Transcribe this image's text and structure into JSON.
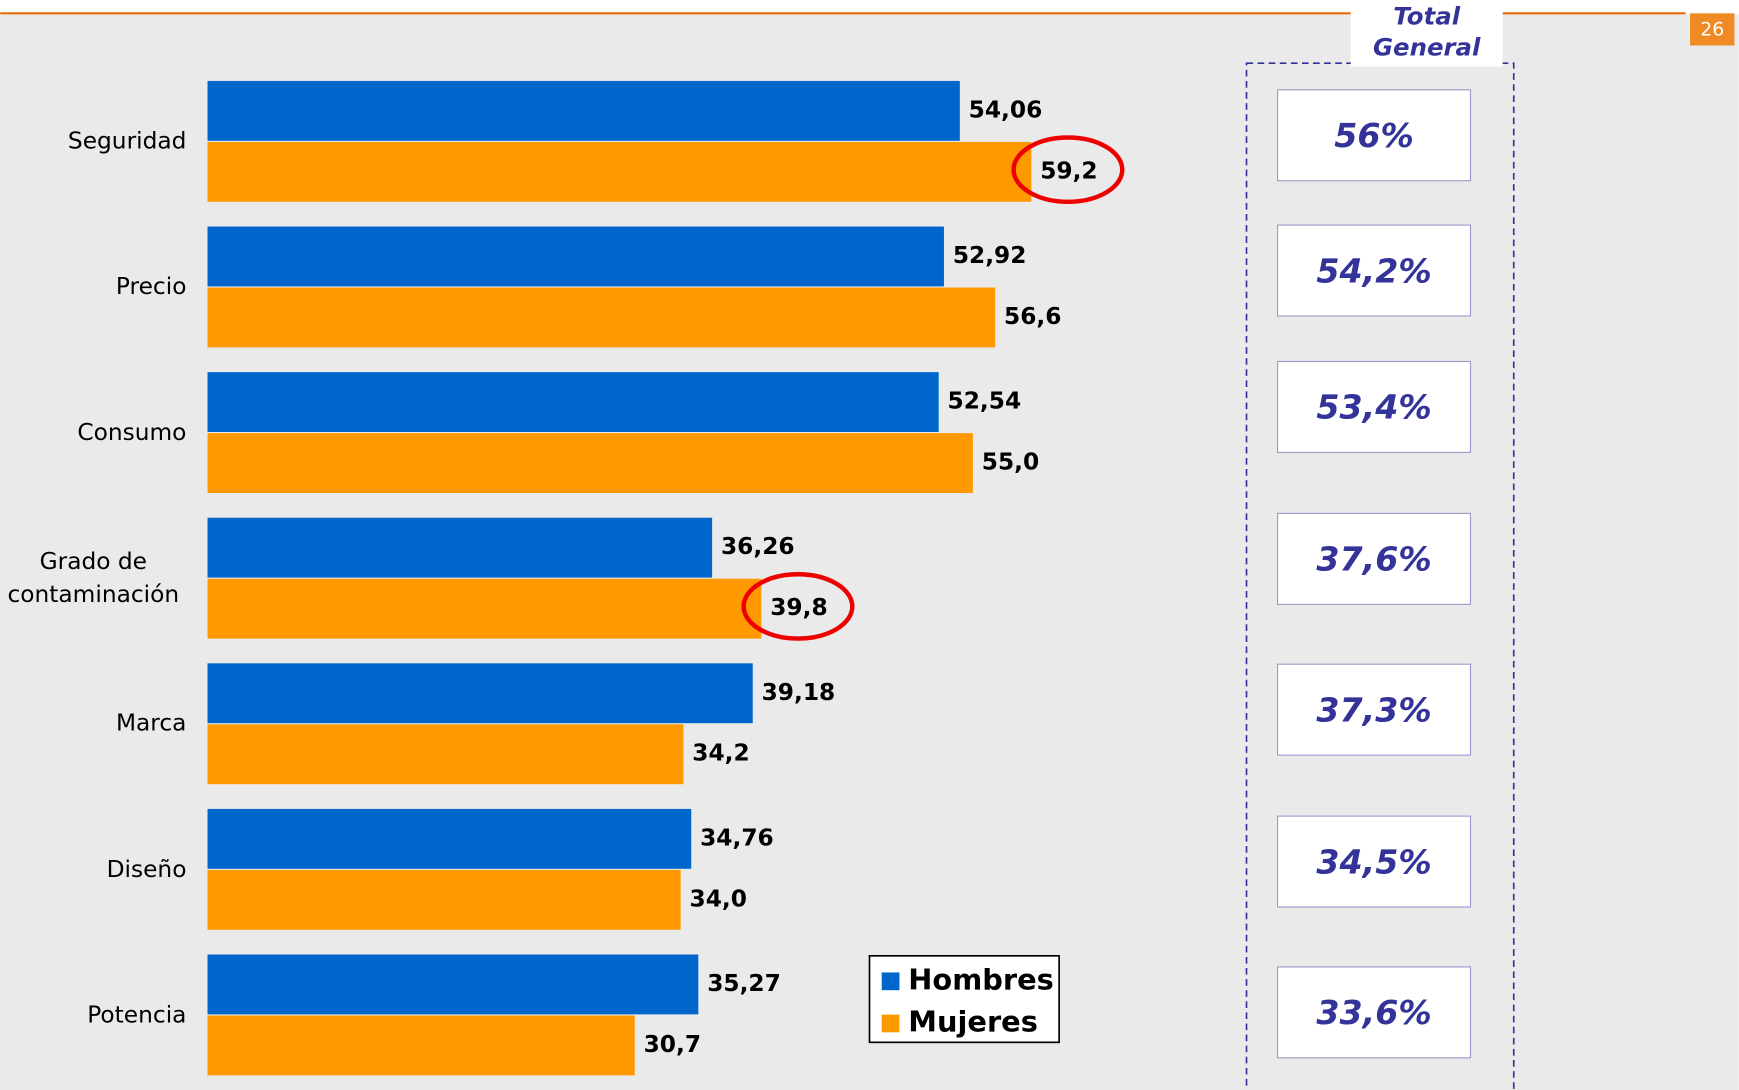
{
  "chart_data": {
    "type": "bar",
    "orientation": "horizontal",
    "categories": [
      "Seguridad",
      "Precio",
      "Consumo",
      "Grado de contaminación",
      "Marca",
      "Diseño",
      "Potencia"
    ],
    "series": [
      {
        "name": "Hombres",
        "color": "#0066cc",
        "values": [
          54.06,
          52.92,
          52.54,
          36.26,
          39.18,
          34.76,
          35.27
        ],
        "value_labels": [
          "54,06",
          "52,92",
          "52,54",
          "36,26",
          "39,18",
          "34,76",
          "35,27"
        ]
      },
      {
        "name": "Mujeres",
        "color": "#ff9900",
        "values": [
          59.2,
          56.6,
          55.0,
          39.8,
          34.2,
          34.0,
          30.7
        ],
        "value_labels": [
          "59,2",
          "56,6",
          "55,0",
          "39,8",
          "34,2",
          "34,0",
          "30,7"
        ]
      }
    ],
    "total_general": {
      "title": "Total General",
      "values": [
        56,
        54.2,
        53.4,
        37.6,
        37.3,
        34.5,
        33.6
      ],
      "value_labels": [
        "56%",
        "54,2%",
        "53,4%",
        "37,6%",
        "37,3%",
        "34,5%",
        "33,6%"
      ]
    },
    "page_number": "26"
  }
}
